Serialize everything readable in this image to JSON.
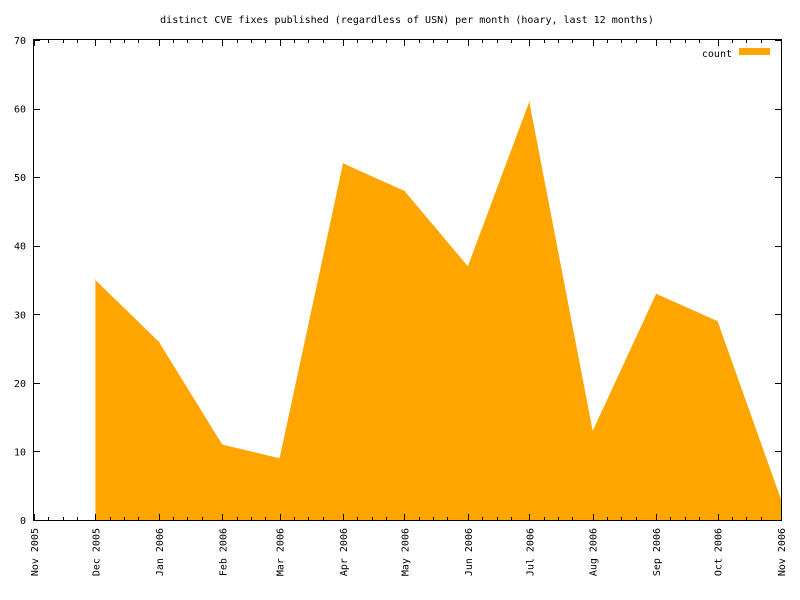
{
  "chart_data": {
    "type": "area",
    "title": "distinct CVE fixes published (regardless of USN) per month (hoary, last 12 months)",
    "xlabel": "",
    "ylabel": "",
    "xlim": [
      "2005-11-01",
      "2006-11-01"
    ],
    "ylim": [
      0,
      70
    ],
    "yticks": [
      0,
      10,
      20,
      30,
      40,
      50,
      60,
      70
    ],
    "xticks": [
      {
        "date": "2005-11-01",
        "label": "Nov 2005"
      },
      {
        "date": "2005-12-01",
        "label": "Dec 2005"
      },
      {
        "date": "2006-01-01",
        "label": "Jan 2006"
      },
      {
        "date": "2006-02-01",
        "label": "Feb 2006"
      },
      {
        "date": "2006-03-01",
        "label": "Mar 2006"
      },
      {
        "date": "2006-04-01",
        "label": "Apr 2006"
      },
      {
        "date": "2006-05-01",
        "label": "May 2006"
      },
      {
        "date": "2006-06-01",
        "label": "Jun 2006"
      },
      {
        "date": "2006-07-01",
        "label": "Jul 2006"
      },
      {
        "date": "2006-08-01",
        "label": "Aug 2006"
      },
      {
        "date": "2006-09-01",
        "label": "Sep 2006"
      },
      {
        "date": "2006-10-01",
        "label": "Oct 2006"
      },
      {
        "date": "2006-11-01",
        "label": "Nov 2006"
      }
    ],
    "grid": false,
    "legend": "top-right",
    "series": [
      {
        "name": "count",
        "color": "#ffa500",
        "points": [
          {
            "x": "2005-12-01",
            "y": 35
          },
          {
            "x": "2006-01-01",
            "y": 26
          },
          {
            "x": "2006-02-01",
            "y": 11
          },
          {
            "x": "2006-03-01",
            "y": 9
          },
          {
            "x": "2006-04-01",
            "y": 52
          },
          {
            "x": "2006-05-01",
            "y": 48
          },
          {
            "x": "2006-06-01",
            "y": 37
          },
          {
            "x": "2006-07-01",
            "y": 61
          },
          {
            "x": "2006-08-01",
            "y": 13
          },
          {
            "x": "2006-09-01",
            "y": 33
          },
          {
            "x": "2006-10-01",
            "y": 29
          },
          {
            "x": "2006-11-01",
            "y": 3
          }
        ]
      }
    ]
  }
}
